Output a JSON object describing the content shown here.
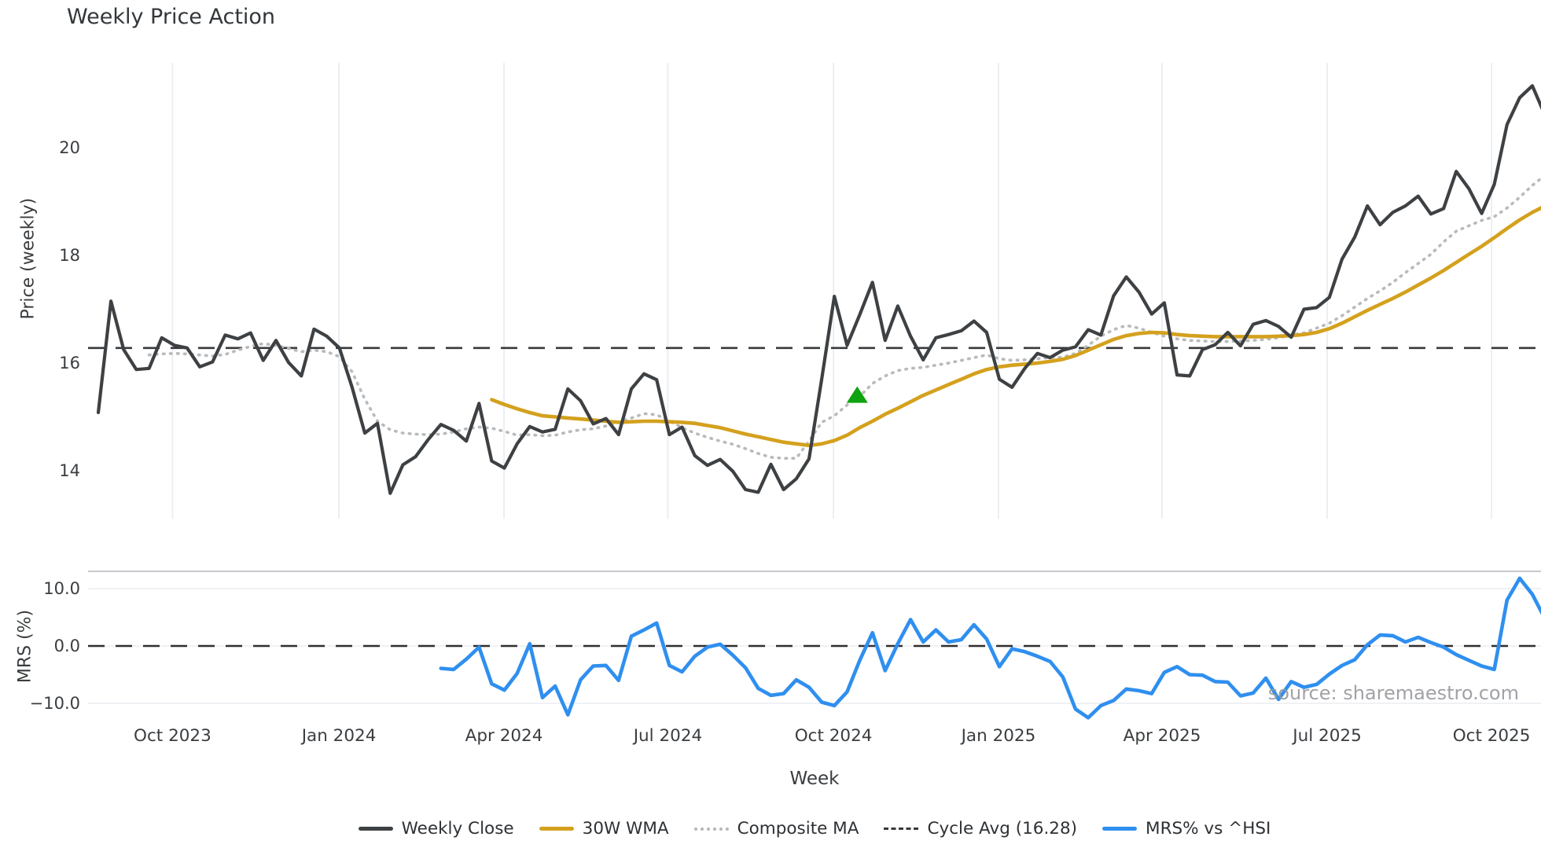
{
  "title": "Weekly Price Action",
  "watermark": "source: sharemaestro.com",
  "x_axis_title": "Week",
  "price_panel": {
    "axis_title": "Price (weekly)"
  },
  "mrs_panel": {
    "axis_title": "MRS (%)"
  },
  "legend": {
    "items": [
      {
        "label": "Weekly Close"
      },
      {
        "label": "30W WMA"
      },
      {
        "label": "Composite MA"
      },
      {
        "label": "Cycle Avg (16.28)"
      },
      {
        "label": "MRS% vs ^HSI"
      }
    ]
  },
  "chart_data": {
    "type": "line",
    "x_unit": "week_index",
    "x_ticks": [
      {
        "week": 5.85,
        "label": "Oct 2023"
      },
      {
        "week": 18.96,
        "label": "Jan 2024"
      },
      {
        "week": 31.97,
        "label": "Apr 2024"
      },
      {
        "week": 44.88,
        "label": "Jul 2024"
      },
      {
        "week": 57.93,
        "label": "Oct 2024"
      },
      {
        "week": 70.93,
        "label": "Jan 2025"
      },
      {
        "week": 83.82,
        "label": "Apr 2025"
      },
      {
        "week": 96.83,
        "label": "Jul 2025"
      },
      {
        "week": 109.78,
        "label": "Oct 2025"
      }
    ],
    "panels": [
      {
        "name": "price",
        "ylabel": "Price (weekly)",
        "ylim": [
          13.4,
          21.6
        ],
        "yticks": [
          14,
          16,
          18,
          20
        ],
        "ytick_labels": [
          "14",
          "16",
          "18",
          "20"
        ],
        "grid": "vertical",
        "cycle_avg": 16.28,
        "marker": {
          "shape": "triangle-up",
          "color": "#10a310",
          "week": 59.8,
          "price": 15.4
        },
        "series": [
          {
            "name": "Weekly Close",
            "color": "#3e4144",
            "style": "solid",
            "start_week": 0,
            "values": [
              15.08,
              17.15,
              16.25,
              15.88,
              15.9,
              16.47,
              16.33,
              16.28,
              15.93,
              16.02,
              16.52,
              16.45,
              16.56,
              16.05,
              16.42,
              16.01,
              15.76,
              16.63,
              16.5,
              16.28,
              15.55,
              14.7,
              14.88,
              13.58,
              14.11,
              14.26,
              14.58,
              14.86,
              14.75,
              14.55,
              15.25,
              14.18,
              14.05,
              14.5,
              14.82,
              14.72,
              14.77,
              15.52,
              15.3,
              14.87,
              14.97,
              14.67,
              15.52,
              15.8,
              15.69,
              14.67,
              14.81,
              14.28,
              14.1,
              14.21,
              13.99,
              13.65,
              13.6,
              14.12,
              13.65,
              13.85,
              14.22,
              15.7,
              17.24,
              16.33,
              16.9,
              17.5,
              16.42,
              17.06,
              16.5,
              16.06,
              16.47,
              16.53,
              16.6,
              16.78,
              16.57,
              15.7,
              15.55,
              15.9,
              16.18,
              16.1,
              16.24,
              16.3,
              16.62,
              16.52,
              17.25,
              17.6,
              17.32,
              16.91,
              17.12,
              15.78,
              15.76,
              16.25,
              16.34,
              16.57,
              16.32,
              16.72,
              16.79,
              16.68,
              16.48,
              17.0,
              17.03,
              17.22,
              17.93,
              18.34,
              18.92,
              18.57,
              18.8,
              18.92,
              19.1,
              18.77,
              18.87,
              19.56,
              19.24,
              18.78,
              19.32,
              20.43,
              20.93,
              21.15,
              20.6
            ]
          },
          {
            "name": "30W WMA",
            "color": "#d4a11e",
            "style": "solid",
            "start_week": 31,
            "values": [
              15.32,
              15.23,
              15.15,
              15.08,
              15.02,
              15.0,
              14.98,
              14.96,
              14.94,
              14.92,
              14.9,
              14.91,
              14.92,
              14.92,
              14.91,
              14.9,
              14.88,
              14.84,
              14.8,
              14.74,
              14.68,
              14.63,
              14.58,
              14.53,
              14.5,
              14.47,
              14.5,
              14.56,
              14.66,
              14.8,
              14.92,
              15.05,
              15.16,
              15.28,
              15.4,
              15.5,
              15.6,
              15.7,
              15.8,
              15.88,
              15.93,
              15.96,
              15.98,
              16.0,
              16.03,
              16.07,
              16.14,
              16.24,
              16.34,
              16.44,
              16.51,
              16.55,
              16.57,
              16.56,
              16.53,
              16.51,
              16.5,
              16.49,
              16.49,
              16.49,
              16.49,
              16.49,
              16.5,
              16.51,
              16.53,
              16.57,
              16.64,
              16.74,
              16.86,
              16.98,
              17.09,
              17.2,
              17.32,
              17.45,
              17.58,
              17.72,
              17.87,
              18.02,
              18.17,
              18.33,
              18.5,
              18.66,
              18.8,
              18.92
            ]
          },
          {
            "name": "Composite MA",
            "color": "#b8babc",
            "style": "dotted",
            "start_week": 4,
            "values": [
              16.15,
              16.17,
              16.18,
              16.17,
              16.15,
              16.13,
              16.16,
              16.24,
              16.31,
              16.36,
              16.33,
              16.27,
              16.21,
              16.24,
              16.21,
              16.12,
              15.84,
              15.33,
              14.92,
              14.76,
              14.7,
              14.68,
              14.67,
              14.68,
              14.72,
              14.78,
              14.81,
              14.79,
              14.73,
              14.66,
              14.67,
              14.65,
              14.66,
              14.72,
              14.76,
              14.78,
              14.83,
              14.9,
              14.98,
              15.06,
              15.04,
              14.92,
              14.8,
              14.7,
              14.62,
              14.55,
              14.49,
              14.41,
              14.32,
              14.25,
              14.23,
              14.23,
              14.55,
              14.9,
              15.02,
              15.22,
              15.38,
              15.62,
              15.76,
              15.86,
              15.9,
              15.92,
              15.96,
              16.0,
              16.05,
              16.1,
              16.15,
              16.08,
              16.05,
              16.06,
              16.08,
              16.1,
              16.11,
              16.18,
              16.33,
              16.5,
              16.62,
              16.7,
              16.65,
              16.57,
              16.5,
              16.45,
              16.42,
              16.41,
              16.4,
              16.4,
              16.41,
              16.42,
              16.44,
              16.47,
              16.52,
              16.56,
              16.65,
              16.74,
              16.88,
              17.04,
              17.2,
              17.34,
              17.5,
              17.68,
              17.85,
              18.02,
              18.25,
              18.45,
              18.55,
              18.65,
              18.72,
              18.88,
              19.08,
              19.3,
              19.49
            ]
          },
          {
            "name": "Cycle Avg",
            "color": "#37393b",
            "style": "dashed",
            "value": 16.28
          }
        ]
      },
      {
        "name": "mrs",
        "ylabel": "MRS (%)",
        "ylim": [
          -13,
          13
        ],
        "yticks": [
          10,
          0,
          -10
        ],
        "ytick_labels": [
          "10.0",
          "0.0",
          "−10.0"
        ],
        "grid": "horizontal",
        "series": [
          {
            "name": "MRS% vs ^HSI",
            "color": "#2f8fef",
            "style": "solid",
            "start_week": 27,
            "values": [
              -3.9,
              -4.1,
              -2.3,
              -0.2,
              -6.6,
              -7.7,
              -4.8,
              0.4,
              -9.0,
              -7.0,
              -12.0,
              -5.9,
              -3.5,
              -3.4,
              -6.0,
              1.7,
              2.8,
              4.0,
              -3.4,
              -4.5,
              -1.8,
              -0.2,
              0.3,
              -1.6,
              -3.8,
              -7.4,
              -8.6,
              -8.3,
              -5.9,
              -7.2,
              -9.8,
              -10.4,
              -8.0,
              -2.5,
              2.3,
              -4.3,
              0.4,
              4.6,
              0.7,
              2.8,
              0.7,
              1.1,
              3.7,
              1.2,
              -3.6,
              -0.5,
              -1.0,
              -1.8,
              -2.7,
              -5.4,
              -11.0,
              -12.5,
              -10.4,
              -9.5,
              -7.5,
              -7.8,
              -8.3,
              -4.6,
              -3.6,
              -5.0,
              -5.1,
              -6.2,
              -6.3,
              -8.7,
              -8.2,
              -5.6,
              -9.3,
              -6.2,
              -7.2,
              -6.7,
              -4.9,
              -3.4,
              -2.4,
              0.2,
              1.9,
              1.8,
              0.7,
              1.5,
              0.6,
              -0.2,
              -1.5,
              -2.5,
              -3.5,
              -4.1,
              8.0,
              11.8,
              9.0,
              4.7
            ]
          },
          {
            "name": "Zero Line",
            "color": "#2f2f2f",
            "style": "dashed",
            "value": 0
          }
        ]
      }
    ]
  }
}
